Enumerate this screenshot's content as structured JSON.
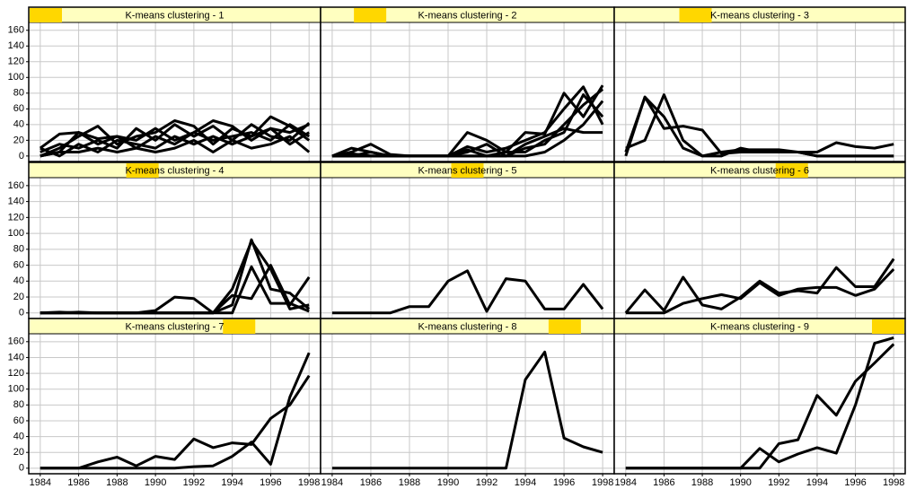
{
  "chart_data": [
    {
      "type": "line",
      "title": "K-means clustering - 1",
      "x": [
        1984,
        1985,
        1986,
        1987,
        1988,
        1989,
        1990,
        1991,
        1992,
        1993,
        1994,
        1995,
        1996,
        1997,
        1998
      ],
      "series": [
        {
          "color": "#000000",
          "values": [
            10,
            28,
            30,
            22,
            25,
            20,
            35,
            20,
            30,
            45,
            38,
            20,
            35,
            30,
            40
          ]
        },
        {
          "color": "#000000",
          "values": [
            0,
            10,
            25,
            38,
            15,
            25,
            30,
            45,
            38,
            15,
            35,
            25,
            50,
            38,
            20
          ]
        },
        {
          "color": "#000000",
          "values": [
            5,
            15,
            10,
            20,
            10,
            35,
            20,
            40,
            25,
            38,
            20,
            40,
            25,
            20,
            42
          ]
        },
        {
          "color": "#000000",
          "values": [
            0,
            5,
            30,
            15,
            25,
            10,
            25,
            15,
            30,
            20,
            25,
            30,
            20,
            40,
            25
          ]
        },
        {
          "color": "#000000",
          "values": [
            10,
            0,
            15,
            5,
            20,
            15,
            10,
            25,
            15,
            25,
            15,
            25,
            35,
            15,
            30
          ]
        },
        {
          "color": "#000000",
          "values": [
            0,
            5,
            5,
            10,
            5,
            10,
            5,
            10,
            20,
            5,
            20,
            10,
            15,
            25,
            5
          ]
        }
      ],
      "xlim": [
        1983.4,
        1998.6
      ],
      "ylim": [
        -7,
        170
      ],
      "xticks": [
        1984,
        1986,
        1988,
        1990,
        1992,
        1994,
        1996,
        1998
      ],
      "yticks": [
        0,
        20,
        40,
        60,
        80,
        100,
        120,
        140,
        160
      ],
      "grid": true
    },
    {
      "type": "line",
      "title": "K-means clustering - 2",
      "x": [
        1984,
        1985,
        1986,
        1987,
        1988,
        1989,
        1990,
        1991,
        1992,
        1993,
        1994,
        1995,
        1996,
        1997,
        1998
      ],
      "series": [
        {
          "color": "#000000",
          "values": [
            0,
            5,
            15,
            2,
            0,
            0,
            0,
            30,
            20,
            5,
            30,
            28,
            80,
            50,
            90
          ]
        },
        {
          "color": "#000000",
          "values": [
            0,
            10,
            5,
            0,
            0,
            0,
            0,
            12,
            5,
            10,
            20,
            30,
            60,
            88,
            40
          ]
        },
        {
          "color": "#000000",
          "values": [
            0,
            0,
            0,
            0,
            0,
            0,
            0,
            5,
            15,
            0,
            10,
            15,
            40,
            65,
            85
          ]
        },
        {
          "color": "#000000",
          "values": [
            0,
            0,
            5,
            0,
            0,
            0,
            0,
            0,
            0,
            5,
            5,
            20,
            30,
            78,
            50
          ]
        },
        {
          "color": "#000000",
          "values": [
            0,
            0,
            0,
            0,
            0,
            0,
            0,
            0,
            0,
            0,
            0,
            5,
            20,
            40,
            70
          ]
        },
        {
          "color": "#000000",
          "values": [
            0,
            3,
            0,
            0,
            0,
            0,
            0,
            8,
            0,
            0,
            15,
            25,
            35,
            30,
            30
          ]
        }
      ],
      "xlim": [
        1983.4,
        1998.6
      ],
      "ylim": [
        -7,
        170
      ],
      "xticks": [
        1984,
        1986,
        1988,
        1990,
        1992,
        1994,
        1996,
        1998
      ],
      "yticks": [
        0,
        20,
        40,
        60,
        80,
        100,
        120,
        140,
        160
      ],
      "grid": true
    },
    {
      "type": "line",
      "title": "K-means clustering - 3",
      "x": [
        1984,
        1985,
        1986,
        1987,
        1988,
        1989,
        1990,
        1991,
        1992,
        1993,
        1994,
        1995,
        1996,
        1997,
        1998
      ],
      "series": [
        {
          "color": "#000000",
          "values": [
            5,
            75,
            35,
            38,
            33,
            3,
            5,
            5,
            5,
            5,
            5,
            17,
            12,
            10,
            15
          ]
        },
        {
          "color": "#000000",
          "values": [
            0,
            75,
            50,
            10,
            0,
            5,
            8,
            8,
            8,
            5,
            0,
            0,
            0,
            0,
            0
          ]
        },
        {
          "color": "#000000",
          "values": [
            10,
            20,
            78,
            20,
            0,
            0,
            10,
            5,
            5,
            5,
            0,
            0,
            0,
            0,
            0
          ]
        }
      ],
      "xlim": [
        1983.4,
        1998.6
      ],
      "ylim": [
        -7,
        170
      ],
      "xticks": [
        1984,
        1986,
        1988,
        1990,
        1992,
        1994,
        1996,
        1998
      ],
      "yticks": [
        0,
        20,
        40,
        60,
        80,
        100,
        120,
        140,
        160
      ],
      "grid": true
    },
    {
      "type": "line",
      "title": "K-means clustering - 4",
      "x": [
        1984,
        1985,
        1986,
        1987,
        1988,
        1989,
        1990,
        1991,
        1992,
        1993,
        1994,
        1995,
        1996,
        1997,
        1998
      ],
      "series": [
        {
          "color": "#000000",
          "values": [
            0,
            0,
            1,
            0,
            0,
            0,
            0,
            0,
            0,
            0,
            10,
            92,
            30,
            25,
            5
          ]
        },
        {
          "color": "#000000",
          "values": [
            0,
            1,
            0,
            0,
            0,
            0,
            3,
            20,
            18,
            0,
            22,
            18,
            60,
            10,
            45
          ]
        },
        {
          "color": "#000000",
          "values": [
            0,
            0,
            0,
            0,
            0,
            0,
            0,
            0,
            0,
            0,
            0,
            58,
            12,
            12,
            2
          ]
        },
        {
          "color": "#000000",
          "values": [
            0,
            0,
            0,
            0,
            0,
            0,
            0,
            0,
            0,
            0,
            30,
            90,
            55,
            5,
            10
          ]
        }
      ],
      "xlim": [
        1983.4,
        1998.6
      ],
      "ylim": [
        -7,
        170
      ],
      "xticks": [
        1984,
        1986,
        1988,
        1990,
        1992,
        1994,
        1996,
        1998
      ],
      "yticks": [
        0,
        20,
        40,
        60,
        80,
        100,
        120,
        140,
        160
      ],
      "grid": true
    },
    {
      "type": "line",
      "title": "K-means clustering - 5",
      "x": [
        1984,
        1985,
        1986,
        1987,
        1988,
        1989,
        1990,
        1991,
        1992,
        1993,
        1994,
        1995,
        1996,
        1997,
        1998
      ],
      "series": [
        {
          "color": "#000000",
          "values": [
            0,
            0,
            0,
            0,
            8,
            8,
            40,
            53,
            2,
            43,
            40,
            5,
            5,
            36,
            5
          ]
        }
      ],
      "xlim": [
        1983.4,
        1998.6
      ],
      "ylim": [
        -7,
        170
      ],
      "xticks": [
        1984,
        1986,
        1988,
        1990,
        1992,
        1994,
        1996,
        1998
      ],
      "yticks": [
        0,
        20,
        40,
        60,
        80,
        100,
        120,
        140,
        160
      ],
      "grid": true
    },
    {
      "type": "line",
      "title": "K-means clustering - 6",
      "x": [
        1984,
        1985,
        1986,
        1987,
        1988,
        1989,
        1990,
        1991,
        1992,
        1993,
        1994,
        1995,
        1996,
        1997,
        1998
      ],
      "series": [
        {
          "color": "#000000",
          "values": [
            0,
            29,
            3,
            45,
            10,
            5,
            20,
            40,
            25,
            28,
            25,
            57,
            33,
            33,
            68
          ]
        },
        {
          "color": "#000000",
          "values": [
            0,
            0,
            0,
            12,
            18,
            23,
            18,
            38,
            22,
            30,
            32,
            32,
            22,
            30,
            55
          ]
        }
      ],
      "xlim": [
        1983.4,
        1998.6
      ],
      "ylim": [
        -7,
        170
      ],
      "xticks": [
        1984,
        1986,
        1988,
        1990,
        1992,
        1994,
        1996,
        1998
      ],
      "yticks": [
        0,
        20,
        40,
        60,
        80,
        100,
        120,
        140,
        160
      ],
      "grid": true
    },
    {
      "type": "line",
      "title": "K-means clustering - 7",
      "x": [
        1984,
        1985,
        1986,
        1987,
        1988,
        1989,
        1990,
        1991,
        1992,
        1993,
        1994,
        1995,
        1996,
        1997,
        1998
      ],
      "series": [
        {
          "color": "#000000",
          "values": [
            0,
            0,
            0,
            0,
            0,
            0,
            0,
            0,
            2,
            3,
            15,
            33,
            5,
            90,
            146
          ]
        },
        {
          "color": "#000000",
          "values": [
            0,
            0,
            0,
            8,
            14,
            3,
            15,
            11,
            37,
            26,
            32,
            30,
            63,
            80,
            117
          ]
        }
      ],
      "xlim": [
        1983.4,
        1998.6
      ],
      "ylim": [
        -7,
        170
      ],
      "xticks": [
        1984,
        1986,
        1988,
        1990,
        1992,
        1994,
        1996,
        1998
      ],
      "yticks": [
        0,
        20,
        40,
        60,
        80,
        100,
        120,
        140,
        160
      ],
      "grid": true
    },
    {
      "type": "line",
      "title": "K-means clustering - 8",
      "x": [
        1984,
        1985,
        1986,
        1987,
        1988,
        1989,
        1990,
        1991,
        1992,
        1993,
        1994,
        1995,
        1996,
        1997,
        1998
      ],
      "series": [
        {
          "color": "#000000",
          "values": [
            0,
            0,
            0,
            0,
            0,
            0,
            0,
            0,
            0,
            0,
            112,
            147,
            38,
            27,
            20
          ]
        }
      ],
      "xlim": [
        1983.4,
        1998.6
      ],
      "ylim": [
        -7,
        170
      ],
      "xticks": [
        1984,
        1986,
        1988,
        1990,
        1992,
        1994,
        1996,
        1998
      ],
      "yticks": [
        0,
        20,
        40,
        60,
        80,
        100,
        120,
        140,
        160
      ],
      "grid": true
    },
    {
      "type": "line",
      "title": "K-means clustering - 9",
      "x": [
        1984,
        1985,
        1986,
        1987,
        1988,
        1989,
        1990,
        1991,
        1992,
        1993,
        1994,
        1995,
        1996,
        1997,
        1998
      ],
      "series": [
        {
          "color": "#000000",
          "values": [
            0,
            0,
            0,
            0,
            0,
            0,
            0,
            25,
            8,
            18,
            26,
            19,
            80,
            158,
            165
          ]
        },
        {
          "color": "#000000",
          "values": [
            0,
            0,
            0,
            0,
            0,
            0,
            0,
            0,
            31,
            36,
            92,
            67,
            110,
            133,
            157
          ]
        }
      ],
      "xlim": [
        1983.4,
        1998.6
      ],
      "ylim": [
        -7,
        170
      ],
      "xticks": [
        1984,
        1986,
        1988,
        1990,
        1992,
        1994,
        1996,
        1998
      ],
      "yticks": [
        0,
        20,
        40,
        60,
        80,
        100,
        120,
        140,
        160
      ],
      "grid": true
    }
  ]
}
